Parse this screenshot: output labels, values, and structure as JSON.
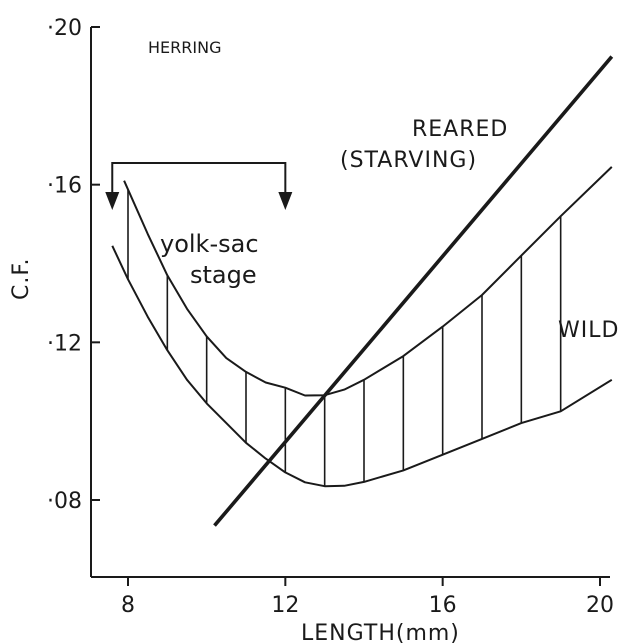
{
  "chart_data": {
    "type": "line",
    "title": "HERRING",
    "xlabel": "LENGTH(mm)",
    "ylabel": "C.F.",
    "xlim": [
      7,
      20.3
    ],
    "ylim": [
      0.07,
      0.2
    ],
    "xticks": [
      8,
      12,
      16,
      20
    ],
    "xtick_labels": [
      "8",
      "12",
      "16",
      "20"
    ],
    "yticks": [
      0.08,
      0.12,
      0.16,
      0.2
    ],
    "ytick_labels": [
      "·08",
      "·12",
      "·16",
      "·20"
    ],
    "grid": false,
    "series": [
      {
        "name": "REARED (STARVING)",
        "style": "thick-line",
        "x": [
          10.2,
          20.3
        ],
        "y": [
          0.0735,
          0.1925
        ]
      },
      {
        "style": "thin-line",
        "x": [
          7.9,
          8.5,
          9,
          9.5,
          10,
          10.5,
          11,
          11.5,
          12,
          12.5,
          13,
          13.5,
          14,
          15,
          16,
          17,
          18,
          19,
          20.3
        ],
        "y": [
          0.161,
          0.1475,
          0.137,
          0.1285,
          0.1215,
          0.116,
          0.1125,
          0.1098,
          0.1085,
          0.1065,
          0.1066,
          0.108,
          0.1105,
          0.1165,
          0.124,
          0.132,
          0.142,
          0.152,
          0.1645
        ]
      },
      {
        "style": "thin-line",
        "x": [
          7.6,
          8,
          8.5,
          9,
          9.5,
          10,
          10.5,
          11,
          11.5,
          12,
          12.5,
          13,
          13.5,
          14,
          15,
          16,
          17,
          18,
          19,
          20.3
        ],
        "y": [
          0.1445,
          0.136,
          0.1265,
          0.118,
          0.1105,
          0.1045,
          0.0995,
          0.0945,
          0.0905,
          0.087,
          0.0845,
          0.0835,
          0.0836,
          0.0846,
          0.0875,
          0.0915,
          0.0955,
          0.0995,
          0.1025,
          0.1105
        ]
      }
    ],
    "hatch_x": [
      8,
      9,
      10,
      11,
      12,
      13,
      14,
      15,
      16,
      17,
      18,
      19
    ],
    "arrow_x": [
      7.6,
      12
    ],
    "annotations": [
      {
        "id": "reared-line1",
        "text": "REARED"
      },
      {
        "id": "reared-line2",
        "text": "(STARVING)"
      },
      {
        "id": "wild",
        "text": "WILD"
      },
      {
        "id": "yolk-line1",
        "text": "yolk-sac"
      },
      {
        "id": "yolk-line2",
        "text": "stage"
      }
    ],
    "colors": {
      "ink": "#1a1a1a",
      "background": "#ffffff"
    }
  }
}
